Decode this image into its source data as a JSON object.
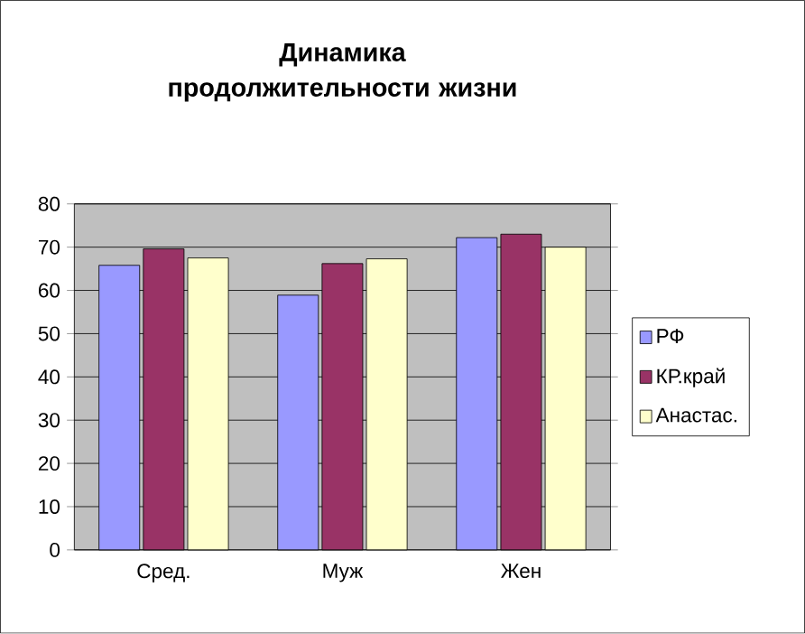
{
  "chart_data": {
    "type": "bar",
    "title": "Динамика продолжительности жизни",
    "categories": [
      "Сред.",
      "Муж",
      "Жен"
    ],
    "series": [
      {
        "name": "РФ",
        "color": "#9999ff",
        "values": [
          65.8,
          58.9,
          72.2
        ]
      },
      {
        "name": "КР.край",
        "color": "#993366",
        "values": [
          69.6,
          66.2,
          73.0
        ]
      },
      {
        "name": "Анастас.",
        "color": "#ffffcc",
        "values": [
          67.5,
          67.3,
          70.0
        ]
      }
    ],
    "ylim": [
      0,
      80
    ],
    "yticks": [
      0,
      10,
      20,
      30,
      40,
      50,
      60,
      70,
      80
    ],
    "grid": "y",
    "legend": "right"
  }
}
